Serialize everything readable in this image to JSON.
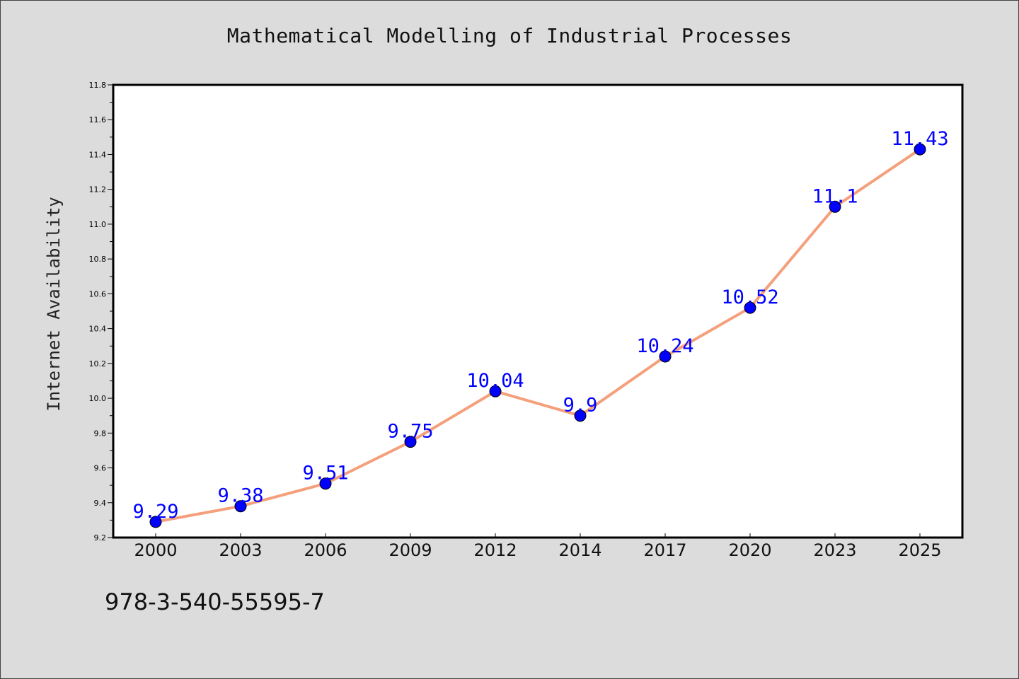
{
  "chart_data": {
    "type": "line",
    "title": "Mathematical Modelling of Industrial Processes",
    "xlabel": "",
    "ylabel": "Internet Availability",
    "categories": [
      "2000",
      "2003",
      "2006",
      "2009",
      "2012",
      "2014",
      "2017",
      "2020",
      "2023",
      "2025"
    ],
    "series": [
      {
        "values": [
          9.29,
          9.38,
          9.51,
          9.75,
          10.04,
          9.9,
          10.24,
          10.52,
          11.1,
          11.43
        ],
        "data_labels": [
          "9.29",
          "9.38",
          "9.51",
          "9.75",
          "10.04",
          "9.9",
          "10.24",
          "10.52",
          "11.1",
          "11.43"
        ]
      }
    ],
    "ylim": [
      9.2,
      11.8
    ],
    "yticks": [
      "9.2",
      "9.4",
      "9.6",
      "9.8",
      "10.0",
      "10.2",
      "10.4",
      "10.6",
      "10.8",
      "11.0",
      "11.2",
      "11.4",
      "11.6",
      "11.8"
    ],
    "grid": false,
    "line_color": "#f4a07c",
    "marker_color": "#0000ff",
    "label_color": "#0000ff",
    "background": "#dcdcdc",
    "plot_background": "#ffffff"
  },
  "footer": {
    "isbn": "978-3-540-55595-7"
  }
}
